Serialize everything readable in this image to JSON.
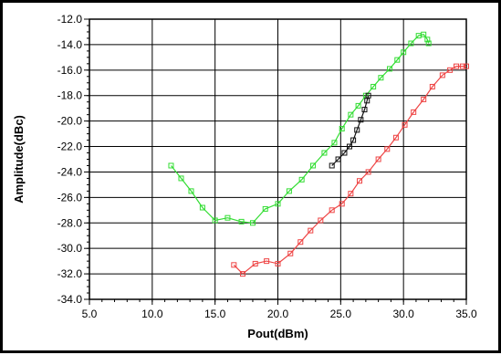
{
  "chart_data": {
    "type": "line",
    "title": "",
    "xlabel": "Pout(dBm)",
    "ylabel": "Amplitude(dBc)",
    "xlim": [
      5.0,
      35.0
    ],
    "ylim": [
      -34.0,
      -12.0
    ],
    "x_major_ticks": [
      5.0,
      10.0,
      15.0,
      20.0,
      25.0,
      30.0,
      35.0
    ],
    "y_major_ticks": [
      -12.0,
      -14.0,
      -16.0,
      -18.0,
      -20.0,
      -22.0,
      -24.0,
      -26.0,
      -28.0,
      -30.0,
      -32.0,
      -34.0
    ],
    "x_tick_labels": [
      "5.0",
      "10.0",
      "15.0",
      "20.0",
      "25.0",
      "30.0",
      "35.0"
    ],
    "y_tick_labels": [
      "-12.0",
      "-14.0",
      "-16.0",
      "-18.0",
      "-20.0",
      "-22.0",
      "-24.0",
      "-26.0",
      "-28.0",
      "-30.0",
      "-32.0",
      "-34.0"
    ],
    "grid": true,
    "legend": "none",
    "marker": "square",
    "series": [
      {
        "color": "#33dd33",
        "points": [
          [
            11.5,
            -23.5
          ],
          [
            12.3,
            -24.5
          ],
          [
            13.1,
            -25.5
          ],
          [
            14.0,
            -26.8
          ],
          [
            15.0,
            -27.8
          ],
          [
            16.0,
            -27.6
          ],
          [
            17.1,
            -27.9
          ],
          [
            18.0,
            -28.0
          ],
          [
            19.0,
            -26.9
          ],
          [
            20.0,
            -26.5
          ],
          [
            20.9,
            -25.5
          ],
          [
            21.9,
            -24.6
          ],
          [
            22.8,
            -23.5
          ],
          [
            23.7,
            -22.5
          ],
          [
            24.5,
            -21.7
          ],
          [
            25.1,
            -20.6
          ],
          [
            25.8,
            -19.5
          ],
          [
            26.4,
            -18.8
          ],
          [
            27.0,
            -18.0
          ],
          [
            27.6,
            -17.3
          ],
          [
            28.2,
            -16.6
          ],
          [
            28.9,
            -15.9
          ],
          [
            29.5,
            -15.2
          ],
          [
            30.0,
            -14.6
          ],
          [
            30.6,
            -13.9
          ],
          [
            31.2,
            -13.3
          ],
          [
            31.6,
            -13.2
          ],
          [
            31.9,
            -13.6
          ],
          [
            32.0,
            -13.9
          ]
        ]
      },
      {
        "color": "#ee4444",
        "points": [
          [
            16.5,
            -31.3
          ],
          [
            17.2,
            -32.0
          ],
          [
            18.2,
            -31.2
          ],
          [
            19.1,
            -31.0
          ],
          [
            20.0,
            -31.2
          ],
          [
            21.0,
            -30.4
          ],
          [
            21.8,
            -29.5
          ],
          [
            22.6,
            -28.6
          ],
          [
            23.4,
            -27.8
          ],
          [
            24.3,
            -27.0
          ],
          [
            25.1,
            -26.5
          ],
          [
            25.8,
            -25.7
          ],
          [
            26.5,
            -24.7
          ],
          [
            27.2,
            -24.0
          ],
          [
            28.0,
            -23.0
          ],
          [
            28.7,
            -22.2
          ],
          [
            29.4,
            -21.3
          ],
          [
            30.1,
            -20.3
          ],
          [
            30.8,
            -19.3
          ],
          [
            31.6,
            -18.3
          ],
          [
            32.3,
            -17.3
          ],
          [
            33.1,
            -16.4
          ],
          [
            33.7,
            -16.0
          ],
          [
            34.2,
            -15.7
          ],
          [
            34.7,
            -15.7
          ],
          [
            35.0,
            -15.7
          ]
        ]
      },
      {
        "color": "#111111",
        "points": [
          [
            24.3,
            -23.5
          ],
          [
            24.8,
            -23.0
          ],
          [
            25.3,
            -22.5
          ],
          [
            25.7,
            -22.0
          ],
          [
            26.0,
            -21.5
          ],
          [
            26.3,
            -20.7
          ],
          [
            26.6,
            -19.9
          ],
          [
            26.9,
            -19.1
          ],
          [
            27.1,
            -18.4
          ],
          [
            27.2,
            -18.0
          ]
        ]
      }
    ]
  }
}
